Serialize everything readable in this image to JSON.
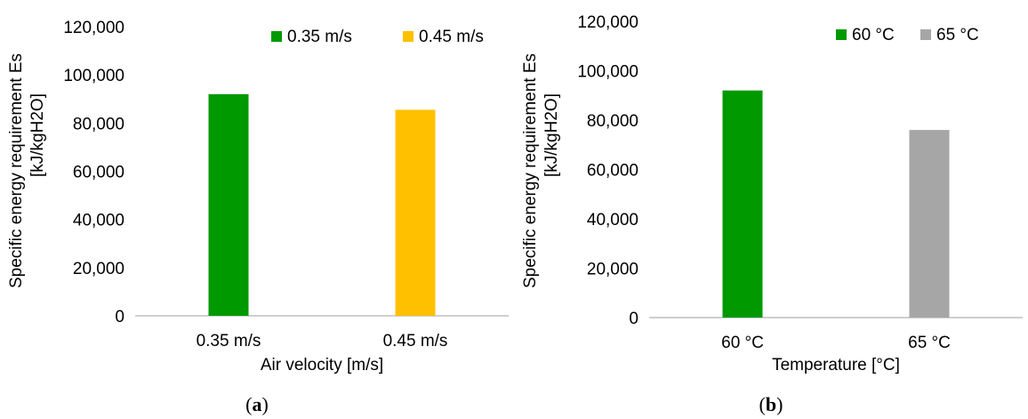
{
  "chart_data": [
    {
      "panel": "a",
      "type": "bar",
      "categories": [
        "0.35 m/s",
        "0.45 m/s"
      ],
      "series": [
        {
          "name": "0.35 m/s",
          "values": [
            92000,
            null
          ],
          "color": "#009900"
        },
        {
          "name": "0.45 m/s",
          "values": [
            null,
            85500
          ],
          "color": "#ffc000"
        }
      ],
      "ylabel_line1": "Specific energy requirement Es",
      "ylabel_line2": "[kJ/kgH2O]",
      "xlabel": "Air velocity [m/s]",
      "ylim": [
        0,
        120000
      ],
      "yticks": [
        "0",
        "20,000",
        "40,000",
        "60,000",
        "80,000",
        "100,000",
        "120,000"
      ],
      "legend_position": "top-right",
      "grid": false,
      "caption_prefix": "(",
      "caption_letter": "a",
      "caption_suffix": ")"
    },
    {
      "panel": "b",
      "type": "bar",
      "categories": [
        "60 °C",
        "65 °C"
      ],
      "series": [
        {
          "name": "60 °C",
          "values": [
            92000,
            null
          ],
          "color": "#009900"
        },
        {
          "name": "65 °C",
          "values": [
            null,
            76000
          ],
          "color": "#a6a6a6"
        }
      ],
      "ylabel_line1": "Specific energy requirement Es",
      "ylabel_line2": "[kJ/kgH2O]",
      "xlabel": "Temperature [°C]",
      "ylim": [
        0,
        120000
      ],
      "yticks": [
        "0",
        "20,000",
        "40,000",
        "60,000",
        "80,000",
        "100,000",
        "120,000"
      ],
      "legend_position": "top-right",
      "grid": false,
      "caption_prefix": "(",
      "caption_letter": "b",
      "caption_suffix": ")"
    }
  ]
}
